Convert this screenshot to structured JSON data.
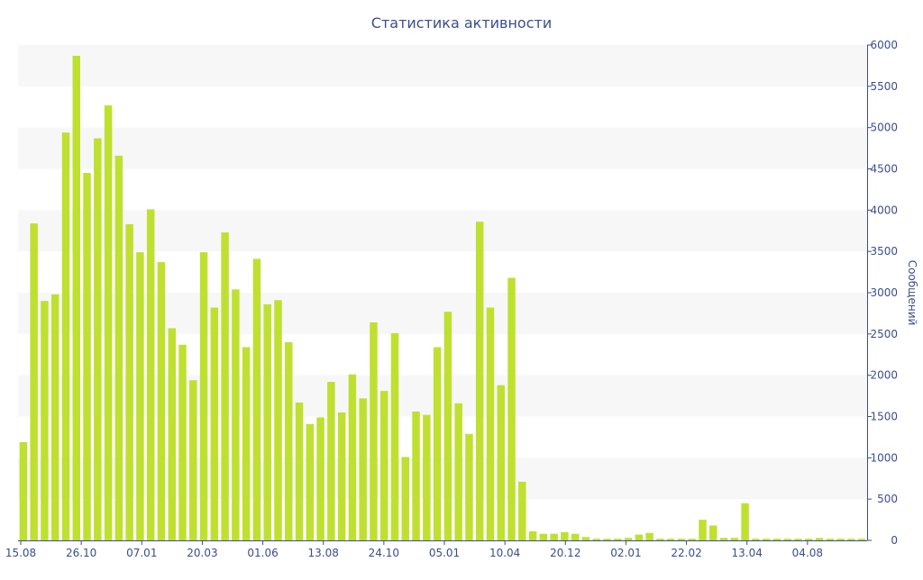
{
  "chart_data": {
    "type": "bar",
    "title": "Статистика активности",
    "ylabel": "Сообщений",
    "xlabel": "",
    "ylim": [
      0,
      6000
    ],
    "y_ticks": [
      0,
      500,
      1000,
      1500,
      2000,
      2500,
      3000,
      3500,
      4000,
      4500,
      5000,
      5500,
      6000
    ],
    "x_tick_labels": [
      "15.08",
      "26.10",
      "07.01",
      "20.03",
      "01.06",
      "13.08",
      "24.10",
      "05.01",
      "10.04",
      "20.12",
      "02.01",
      "22.02",
      "13.04",
      "04.08"
    ],
    "grid": "alternating horizontal bands",
    "y_axis_side": "right",
    "colors": {
      "bar": "#bfe030",
      "text": "#3a4d8f",
      "band": "#f7f7f7"
    },
    "values": [
      1190,
      3840,
      2900,
      2980,
      4940,
      5870,
      4450,
      4870,
      5270,
      4660,
      3830,
      3490,
      4010,
      3370,
      2570,
      2370,
      1940,
      3490,
      2820,
      3730,
      3040,
      2340,
      3410,
      2860,
      2910,
      2400,
      1670,
      1410,
      1490,
      1920,
      1550,
      2010,
      1720,
      2640,
      1810,
      2510,
      1010,
      1560,
      1520,
      2340,
      2770,
      1660,
      1290,
      3860,
      2820,
      1880,
      3180,
      710,
      110,
      80,
      80,
      100,
      80,
      40,
      20,
      20,
      20,
      30,
      70,
      90,
      20,
      20,
      20,
      20,
      250,
      180,
      30,
      30,
      450,
      20,
      20,
      20,
      20,
      20,
      20,
      30,
      20,
      20,
      20,
      20
    ]
  }
}
